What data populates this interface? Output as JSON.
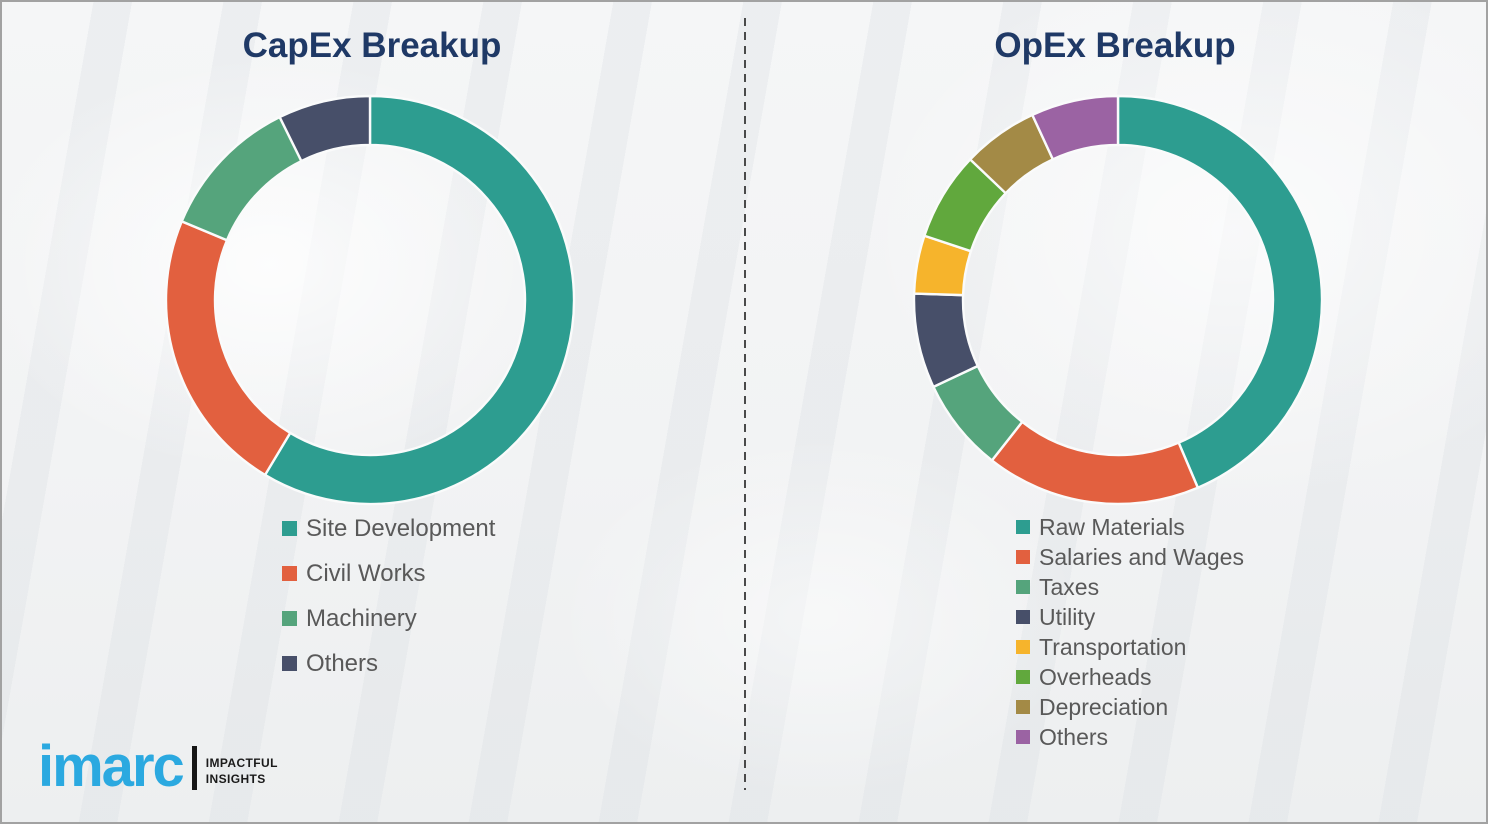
{
  "chart_data": [
    {
      "type": "pie",
      "subtype": "donut",
      "title": "CapEx Breakup",
      "labels": [
        "Site Development",
        "Civil Works",
        "Machinery",
        "Others"
      ],
      "values": [
        58.6,
        22.7,
        11.4,
        7.3
      ],
      "colors": [
        "#2D9D90",
        "#E2603F",
        "#55A47C",
        "#474F69"
      ],
      "legend_position": "below-left",
      "data_labels_shown": false,
      "note": "no numeric labels displayed; slice percentages estimated from arc angles, clockwise from top"
    },
    {
      "type": "pie",
      "subtype": "donut",
      "title": "OpEx Breakup",
      "labels": [
        "Raw Materials",
        "Salaries and Wages",
        "Taxes",
        "Utility",
        "Transportation",
        "Overheads",
        "Depreciation",
        "Others"
      ],
      "values": [
        43.6,
        17.0,
        7.4,
        7.5,
        4.6,
        7.0,
        6.0,
        6.9
      ],
      "colors": [
        "#2D9D90",
        "#E2603F",
        "#55A47C",
        "#474F69",
        "#F6B42C",
        "#61A83D",
        "#A38A46",
        "#9B63A3"
      ],
      "legend_position": "below-left",
      "data_labels_shown": false,
      "note": "no numeric labels displayed; slice percentages estimated from arc angles, clockwise from top"
    }
  ],
  "branding": {
    "logo_text": "imarc",
    "logo_color": "#2BA9E0",
    "tagline": [
      "IMPACTFUL",
      "INSIGHTS"
    ]
  },
  "colors": {
    "title_text": "#1F3966",
    "legend_text": "#595959",
    "background": "#F3F4F5",
    "divider": "#4A4A4A",
    "frame_border": "#A2A2A2",
    "slice_gap": "#FAFBFB"
  }
}
